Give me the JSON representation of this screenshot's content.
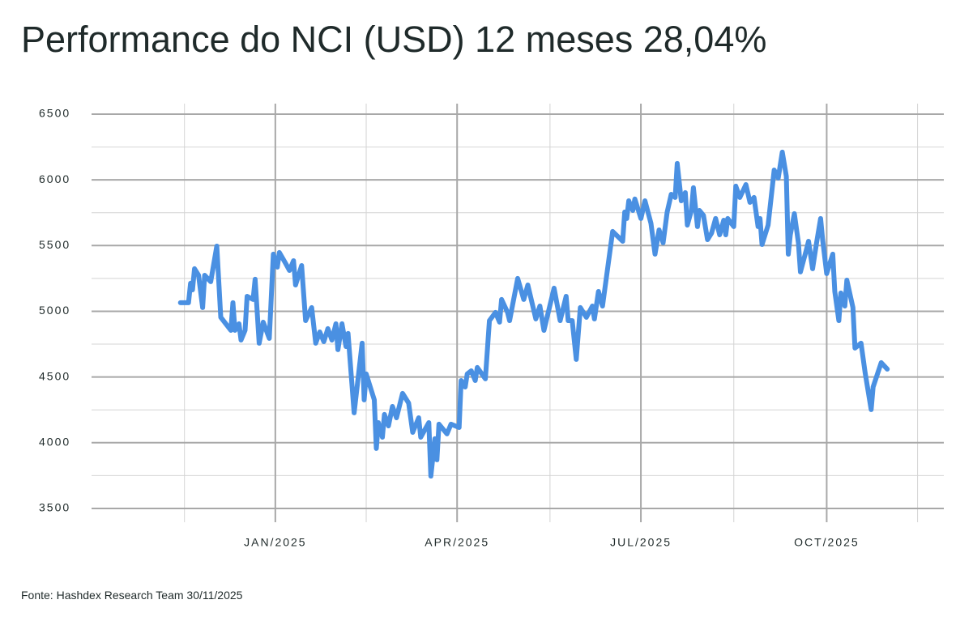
{
  "chart_data": {
    "type": "line",
    "title": "Performance do NCI (USD) 12 meses 28,04%",
    "source": "Fonte: Hashdex Research Team 30/11/2025",
    "color": "#4a90e2",
    "x": [
      -47,
      -43,
      -42,
      -41,
      -40,
      -38,
      -36,
      -35,
      -32,
      -29,
      -27,
      -22,
      -21,
      -20,
      -18,
      -17,
      -15,
      -14,
      -11,
      -10,
      -8,
      -6,
      -3,
      -1,
      1,
      2,
      5,
      7,
      9,
      10,
      13,
      15,
      18,
      20,
      22,
      24,
      26,
      28,
      30,
      31,
      33,
      35,
      36,
      39,
      43,
      44,
      45,
      49,
      50,
      51,
      53,
      54,
      56,
      58,
      60,
      63,
      66,
      68,
      71,
      72,
      76,
      77,
      79,
      80,
      81,
      85,
      87,
      91,
      92,
      94,
      95,
      97,
      99,
      100,
      104,
      106,
      109,
      111,
      112,
      115,
      116,
      120,
      123,
      125,
      129,
      131,
      133,
      138,
      141,
      144,
      145,
      147,
      149,
      151,
      154,
      157,
      158,
      160,
      162,
      167,
      172,
      173,
      174,
      175,
      177,
      178,
      181,
      183,
      186,
      188,
      190,
      192,
      194,
      196,
      198,
      199,
      201,
      203,
      204,
      206,
      207,
      209,
      210,
      212,
      214,
      216,
      218,
      220,
      222,
      223,
      224,
      227,
      228,
      230,
      233,
      235,
      237,
      239,
      240,
      241,
      244,
      247,
      249,
      251,
      253,
      254,
      255,
      257,
      259,
      260,
      263,
      264,
      266,
      268,
      270,
      271,
      273,
      276,
      277,
      279,
      280,
      282,
      283,
      286,
      287,
      290,
      292,
      295,
      296,
      300,
      303
    ],
    "values": [
      5065,
      5065,
      5213,
      5163,
      5324,
      5274,
      5028,
      5274,
      5225,
      5496,
      4954,
      4855,
      5065,
      4855,
      4905,
      4781,
      4855,
      5114,
      5090,
      5244,
      4757,
      4917,
      4794,
      5435,
      5336,
      5447,
      5367,
      5311,
      5385,
      5200,
      5348,
      4929,
      5028,
      4757,
      4843,
      4769,
      4868,
      4781,
      4905,
      4708,
      4905,
      4732,
      4831,
      4227,
      4757,
      4326,
      4523,
      4326,
      3956,
      4153,
      4042,
      4215,
      4128,
      4276,
      4190,
      4375,
      4301,
      4079,
      4190,
      4042,
      4153,
      3746,
      4030,
      3870,
      4141,
      4067,
      4141,
      4116,
      4473,
      4424,
      4523,
      4547,
      4473,
      4572,
      4486,
      4929,
      4991,
      4917,
      5090,
      4991,
      4929,
      5250,
      5090,
      5200,
      4942,
      5040,
      4855,
      5176,
      4929,
      5114,
      4929,
      4929,
      4634,
      5028,
      4954,
      5040,
      4942,
      5151,
      5040,
      5607,
      5533,
      5755,
      5706,
      5841,
      5767,
      5854,
      5706,
      5841,
      5669,
      5435,
      5619,
      5521,
      5755,
      5890,
      5866,
      6125,
      5841,
      5903,
      5656,
      5767,
      5940,
      5644,
      5767,
      5730,
      5545,
      5595,
      5706,
      5582,
      5693,
      5582,
      5706,
      5644,
      5952,
      5866,
      5964,
      5829,
      5866,
      5644,
      5706,
      5508,
      5656,
      6075,
      6014,
      6211,
      6026,
      5435,
      5582,
      5743,
      5521,
      5299,
      5472,
      5533,
      5324,
      5521,
      5706,
      5545,
      5287,
      5435,
      5151,
      4929,
      5139,
      5040,
      5237,
      5028,
      4720,
      4757,
      4535,
      4252,
      4424,
      4609,
      4560
    ],
    "xlim": [
      -91,
      331
    ],
    "xticks": [
      {
        "value": 0,
        "label": "JAN/2025"
      },
      {
        "value": 90,
        "label": "APR/2025"
      },
      {
        "value": 181,
        "label": "JUL/2025"
      },
      {
        "value": 273,
        "label": "OCT/2025"
      }
    ],
    "xminor": [
      -45,
      45,
      136,
      227,
      318
    ],
    "ylim": [
      3395,
      6580
    ],
    "yticks": [
      3500,
      4000,
      4500,
      5000,
      5500,
      6000,
      6500
    ],
    "yminor": [
      3750,
      4250,
      4750,
      5250,
      5750,
      6250
    ],
    "grid": true
  }
}
